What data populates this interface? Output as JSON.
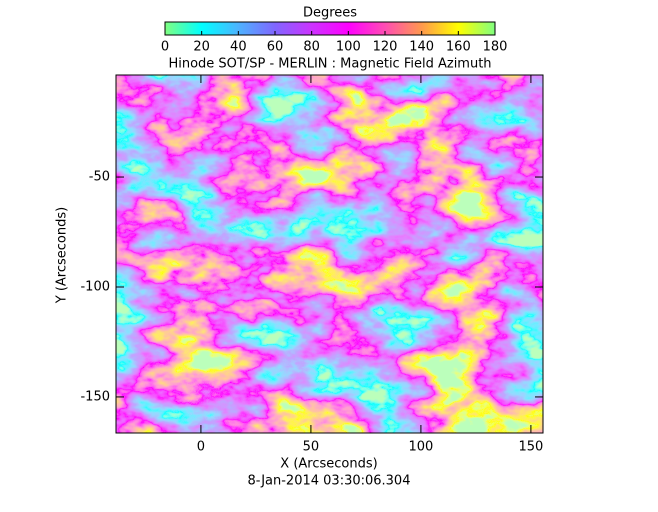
{
  "chart_data": {
    "type": "image",
    "title": "Hinode SOT/SP - MERLIN : Magnetic Field Azimuth",
    "x_label": "X (Arcseconds)",
    "y_label": "Y (Arcseconds)",
    "date": "8-Jan-2014 03:30:06.304",
    "xlim": [
      -38.6,
      155.5
    ],
    "xticks": [
      0,
      50,
      100,
      150
    ],
    "ylim": [
      -166.4,
      -3.6
    ],
    "yticks": [
      -50,
      -100,
      -150
    ],
    "colorbar": {
      "label": "Degrees",
      "clim": [
        0,
        180
      ],
      "ticks": [
        0,
        20,
        40,
        60,
        80,
        100,
        120,
        140,
        160,
        180
      ],
      "colors": [
        "#80ff80",
        "#00ffff",
        "#4db3ff",
        "#8066ff",
        "#cc33ff",
        "#ff00ff",
        "#ff4db3",
        "#ff994d",
        "#ffff00",
        "#80ff80"
      ]
    }
  }
}
